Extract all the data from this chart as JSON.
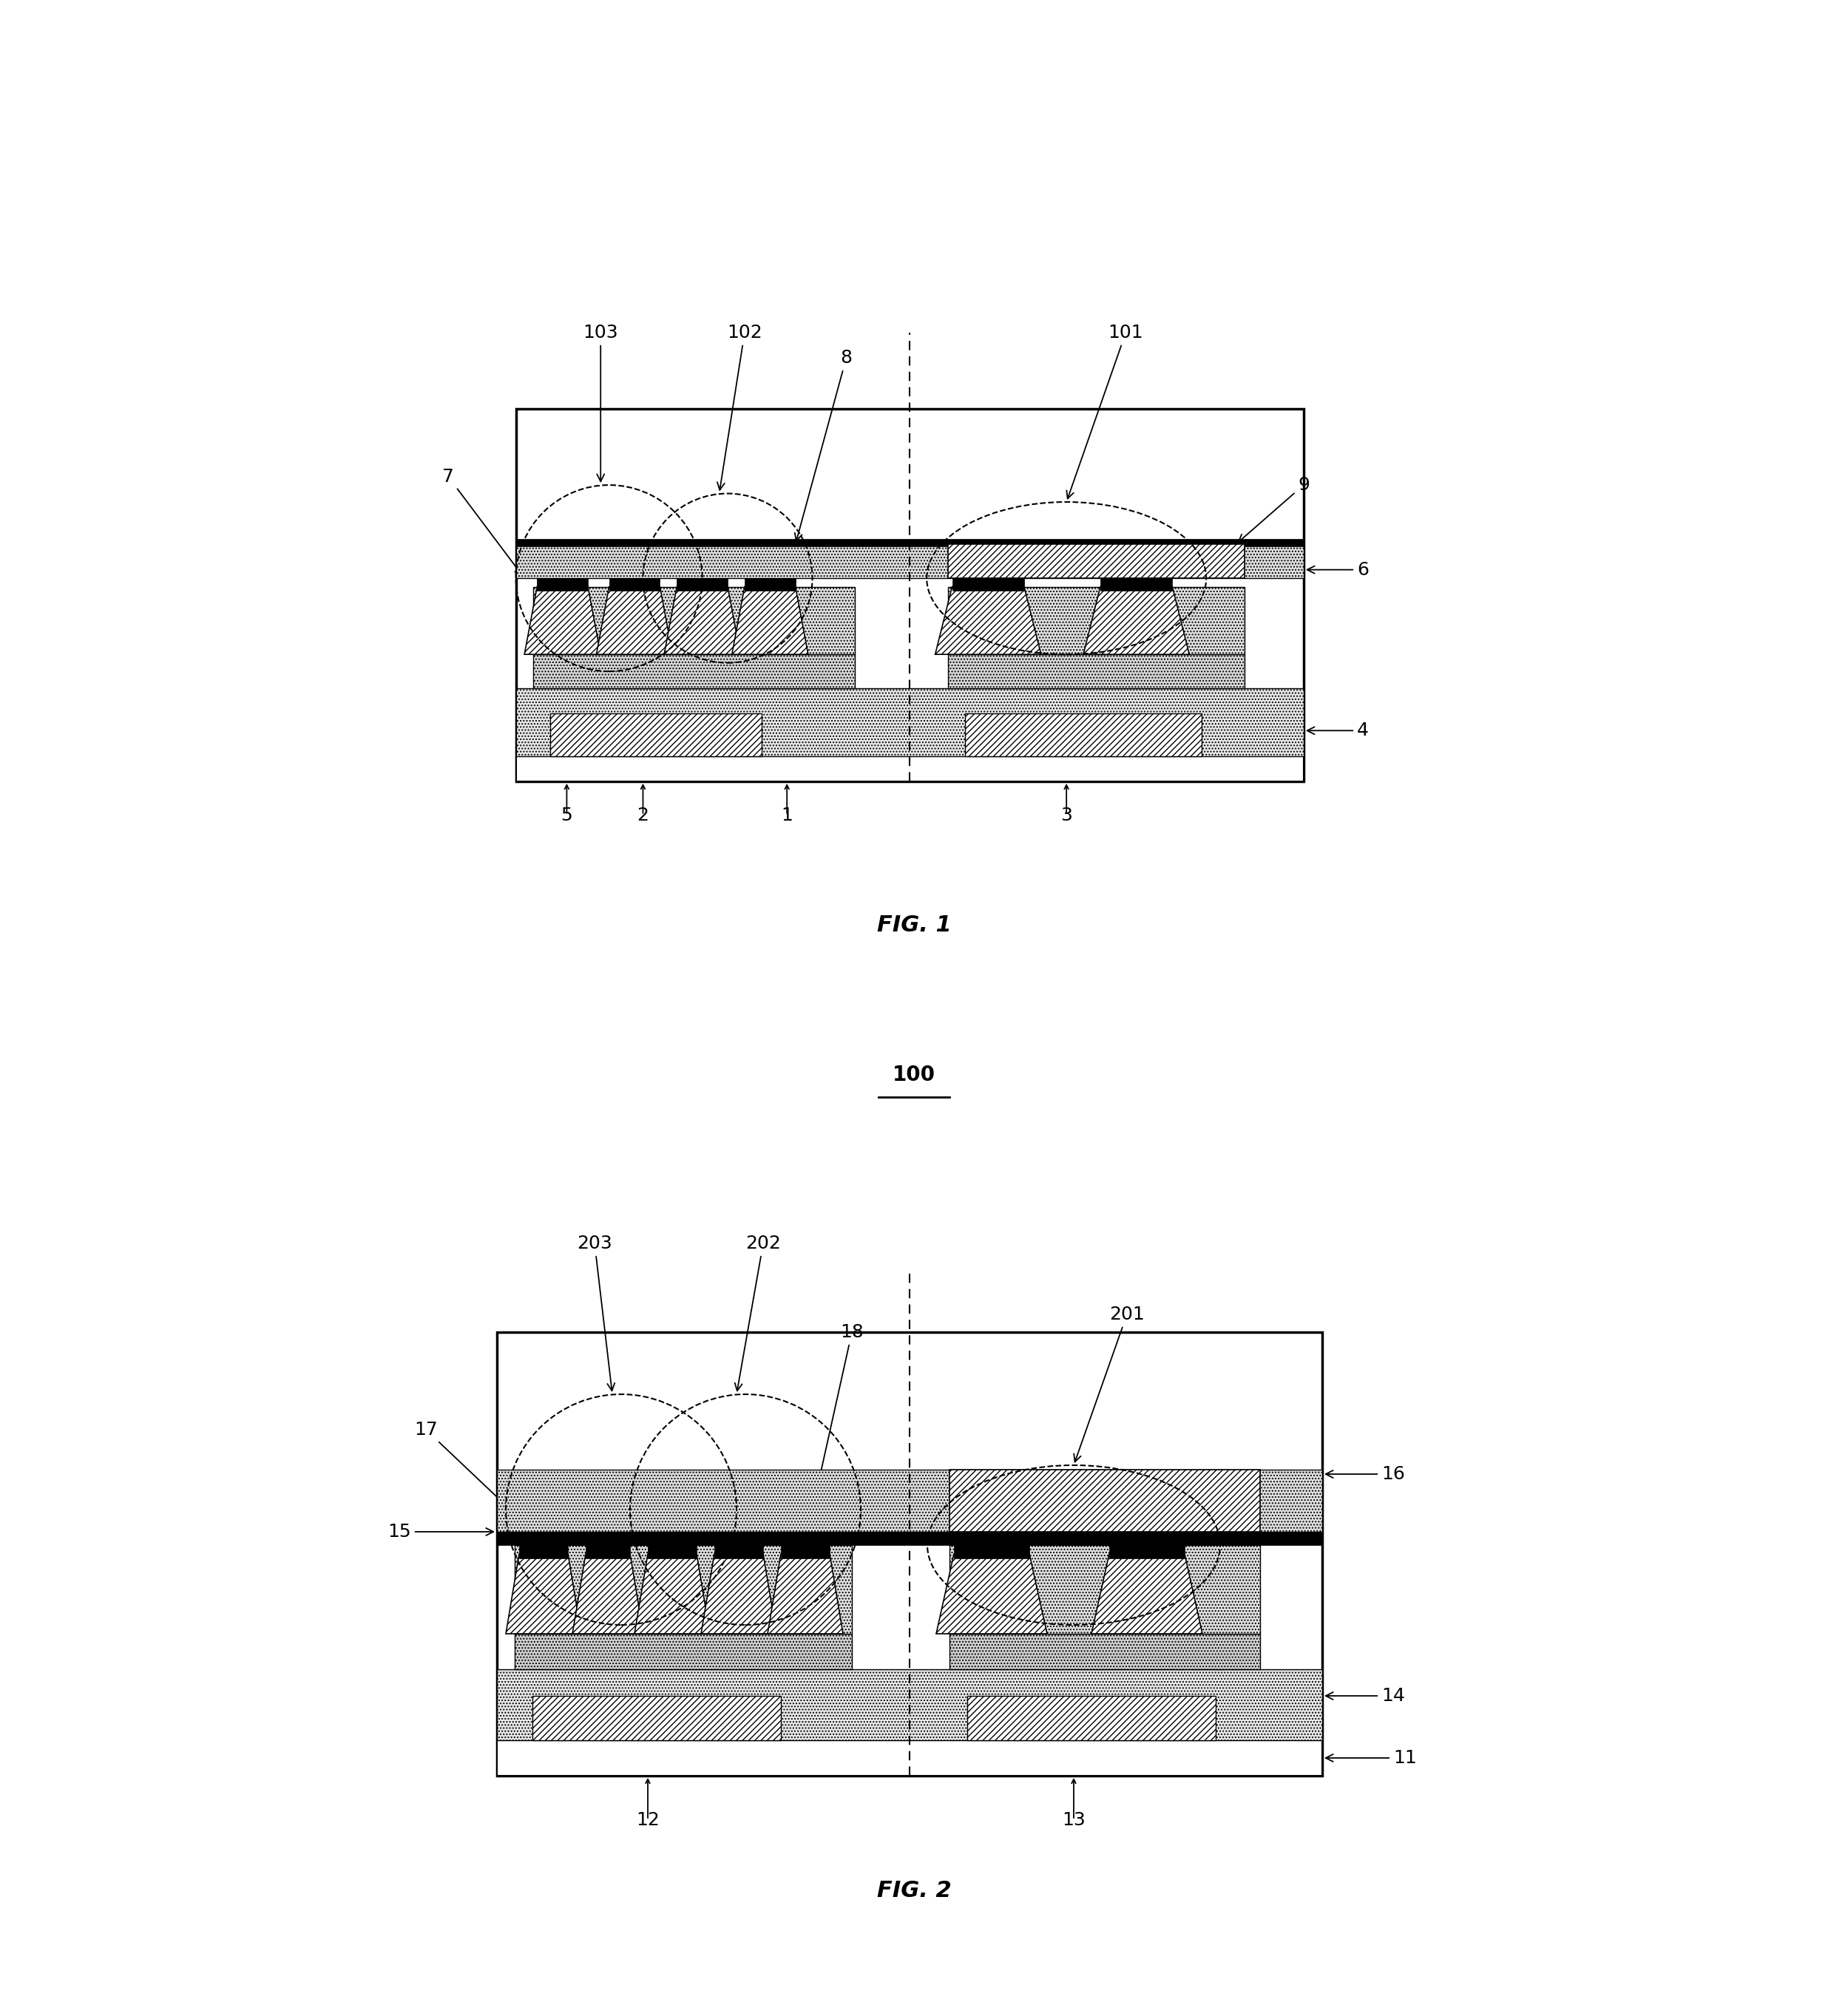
{
  "fig1_title": "FIG. 1",
  "fig2_title": "FIG. 2",
  "fig2_label": "100",
  "bg_color": "#ffffff"
}
